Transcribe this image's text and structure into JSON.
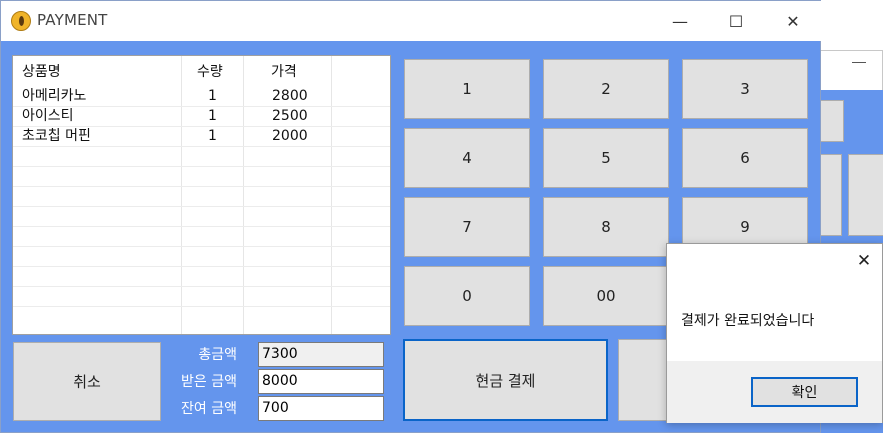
{
  "window": {
    "title": "PAYMENT",
    "minimize": "—",
    "maximize": "☐",
    "close": "✕"
  },
  "list": {
    "headers": [
      "상품명",
      "수량",
      "가격"
    ],
    "rows": [
      {
        "name": "아메리카노",
        "qty": "1",
        "price": "2800"
      },
      {
        "name": "아이스티",
        "qty": "1",
        "price": "2500"
      },
      {
        "name": "초코칩 머핀",
        "qty": "1",
        "price": "2000"
      }
    ]
  },
  "keypad": [
    "1",
    "2",
    "3",
    "4",
    "5",
    "6",
    "7",
    "8",
    "9",
    "0",
    "00"
  ],
  "controls": {
    "cancel_label": "취소",
    "total_label": "총금액",
    "received_label": "받은 금액",
    "change_label": "잔여 금액",
    "total_value": "7300",
    "received_value": "8000",
    "change_value": "700",
    "cash_pay_label": "현금 결제"
  },
  "dialog": {
    "close": "✕",
    "message": "결제가 완료되었습니다",
    "ok_label": "확인"
  },
  "colors": {
    "window_bg": "#6495ed",
    "accent": "#0a64c8"
  }
}
